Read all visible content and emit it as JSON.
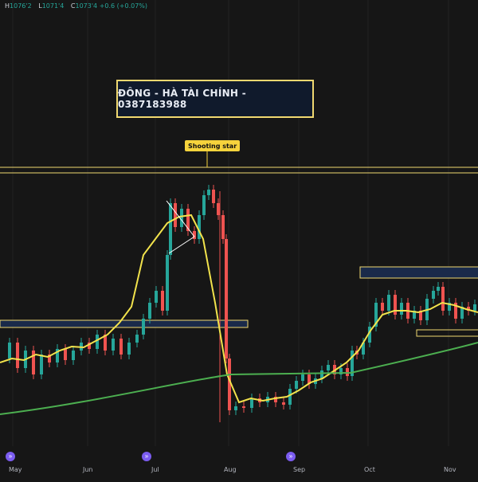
{
  "ohlc": {
    "high_label": "H",
    "high": "1076'2",
    "low_label": "L",
    "low": "1071'4",
    "close_label": "C",
    "close": "1073'4",
    "change": "+0.6 (+0.07%)"
  },
  "banner_text": "ĐÔNG - HÀ TÀI CHÍNH - 0387183988",
  "annotation": "Shooting star",
  "event_icon": "double-chevron-right-icon",
  "colors": {
    "background": "#161616",
    "up": "#26a69a",
    "down": "#ef5350",
    "fast_ma": "#f2e34c",
    "slow_ma": "#4caf50",
    "zone_border": "#f0d870",
    "zone_fill": "#1a2a4a"
  },
  "chart_data": {
    "type": "candlestick",
    "x_tick_labels": [
      "May",
      "Jun",
      "Jul",
      "Aug",
      "Sep",
      "Oct",
      "Nov"
    ],
    "overlays": [
      "fast moving average",
      "slow moving average",
      "supply/demand zones",
      "trend lines"
    ]
  }
}
